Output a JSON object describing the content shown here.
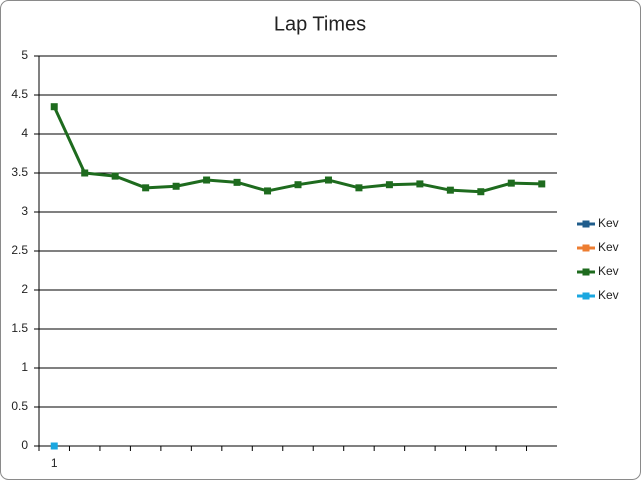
{
  "chart_data": {
    "type": "line",
    "title": "Lap Times",
    "categories": [
      "1",
      null,
      null,
      null,
      null,
      null,
      null,
      null,
      null,
      null,
      null,
      null,
      null,
      null,
      null,
      null,
      null
    ],
    "series": [
      {
        "name": "Kev",
        "color": "#1f5c8b",
        "values": [
          null,
          null,
          null,
          null,
          null,
          null,
          null,
          null,
          null,
          null,
          null,
          null,
          null,
          null,
          null,
          null,
          null
        ]
      },
      {
        "name": "Kev",
        "color": "#ed7d31",
        "values": [
          null,
          null,
          null,
          null,
          null,
          null,
          null,
          null,
          null,
          null,
          null,
          null,
          null,
          null,
          null,
          null,
          null
        ]
      },
      {
        "name": "Kev",
        "color": "#1e6b1e",
        "values": [
          4.35,
          3.5,
          3.46,
          3.31,
          3.33,
          3.41,
          3.38,
          3.27,
          3.35,
          3.41,
          3.31,
          3.35,
          3.36,
          3.28,
          3.26,
          3.37,
          3.36
        ]
      },
      {
        "name": "Kev",
        "color": "#1aa7e0",
        "values": [
          0,
          null,
          null,
          null,
          null,
          null,
          null,
          null,
          null,
          null,
          null,
          null,
          null,
          null,
          null,
          null,
          null
        ]
      }
    ],
    "ylim": [
      0,
      5
    ],
    "yticks": [
      0,
      0.5,
      1,
      1.5,
      2,
      2.5,
      3,
      3.5,
      4,
      4.5,
      5
    ],
    "grid": true,
    "legend": "right"
  }
}
